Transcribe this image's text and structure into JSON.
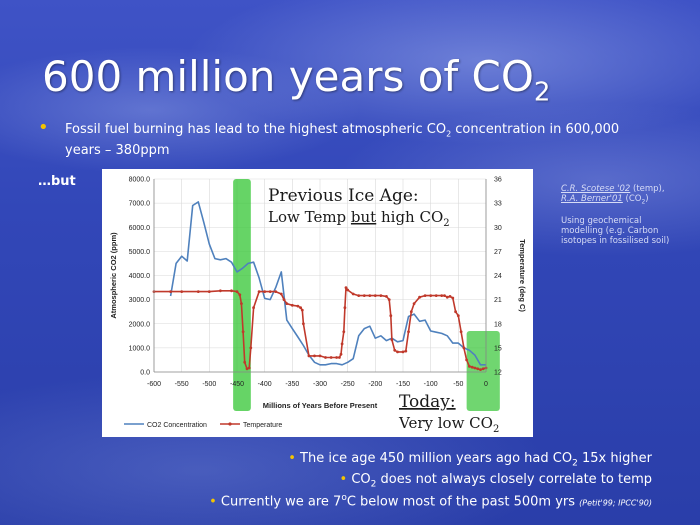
{
  "slide": {
    "title_main": "600 million years of CO",
    "title_sub": "2",
    "bullet": {
      "part1": "Fossil fuel burning has lead to the highest atmospheric CO",
      "sub": "2",
      "part2": " concentration in 600,000 years – 380ppm"
    },
    "but": "…but",
    "source": {
      "author1": "C.R. Scotese '02",
      "label1": " (temp),",
      "author2": "R.A. Berner'01",
      "label2": " (CO",
      "label2_sub": "2",
      "label2_end": ")",
      "method": "Using geochemical modelling (e.g. Carbon isotopes in fossilised soil)"
    },
    "bottom_bullets": [
      {
        "before": "The ice age 450 million years ago had CO",
        "sub": "2",
        "after": " 15x higher"
      },
      {
        "before": "CO",
        "sub": "2",
        "after": " does not always closely correlate to temp"
      },
      {
        "before": "Currently we are 7",
        "sup": "o",
        "after": "C below most of the past 500m yrs ",
        "cite": "(Petit'99; IPCC'90)"
      }
    ],
    "colors": {
      "bullet": "#f4c400",
      "highlight": "#33c533"
    }
  },
  "chart_data": {
    "type": "line",
    "xlabel": "Millions of Years Before Present",
    "ylabel": "Atmospheric CO2 (ppm)",
    "y2label": "Temperature (deg C)",
    "xlim": [
      -600,
      0
    ],
    "ylim": [
      0,
      8000
    ],
    "y2lim": [
      12,
      36
    ],
    "x_ticks": [
      -600,
      -550,
      -500,
      -450,
      -400,
      -350,
      -300,
      -250,
      -200,
      -150,
      -100,
      -50,
      0
    ],
    "y_ticks": [
      "0.0",
      "1000.0",
      "2000.0",
      "3000.0",
      "4000.0",
      "5000.0",
      "6000.0",
      "7000.0",
      "8000.0"
    ],
    "y2_ticks": [
      "12",
      "15",
      "18",
      "21",
      "24",
      "27",
      "30",
      "33",
      "36"
    ],
    "grid": true,
    "legend": "bottom-left",
    "series": [
      {
        "name": "CO2 Concentration",
        "axis": "left",
        "color": "#4f81bd",
        "x": [
          -570,
          -560,
          -550,
          -540,
          -530,
          -520,
          -510,
          -500,
          -490,
          -480,
          -470,
          -460,
          -450,
          -440,
          -430,
          -420,
          -410,
          -400,
          -390,
          -380,
          -370,
          -360,
          -350,
          -340,
          -330,
          -320,
          -310,
          -300,
          -290,
          -280,
          -270,
          -260,
          -250,
          -240,
          -230,
          -220,
          -210,
          -200,
          -190,
          -180,
          -170,
          -160,
          -150,
          -140,
          -130,
          -120,
          -110,
          -100,
          -90,
          -80,
          -70,
          -60,
          -50,
          -40,
          -30,
          -20,
          -10,
          0
        ],
        "values": [
          3150,
          4500,
          4800,
          4600,
          6900,
          7050,
          6200,
          5300,
          4700,
          4650,
          4700,
          4550,
          4150,
          4300,
          4500,
          4550,
          3900,
          3050,
          3000,
          3500,
          4150,
          2150,
          1800,
          1450,
          1100,
          700,
          400,
          300,
          300,
          350,
          350,
          300,
          400,
          550,
          1500,
          1800,
          1900,
          1400,
          1500,
          1300,
          1400,
          1250,
          1300,
          2300,
          2400,
          2100,
          2150,
          1700,
          1650,
          1600,
          1500,
          1200,
          1200,
          1000,
          900,
          700,
          300,
          300
        ]
      },
      {
        "name": "Temperature",
        "axis": "right",
        "color": "#c0392b",
        "x": [
          -600,
          -570,
          -550,
          -520,
          -500,
          -480,
          -460,
          -450,
          -445,
          -442,
          -439,
          -436,
          -432,
          -428,
          -425,
          -420,
          -410,
          -400,
          -390,
          -380,
          -370,
          -365,
          -360,
          -350,
          -340,
          -335,
          -332,
          -330,
          -320,
          -310,
          -300,
          -290,
          -280,
          -270,
          -265,
          -262,
          -260,
          -257,
          -255,
          -253,
          -250,
          -240,
          -230,
          -220,
          -210,
          -200,
          -190,
          -180,
          -175,
          -172,
          -170,
          -165,
          -160,
          -150,
          -145,
          -140,
          -135,
          -130,
          -120,
          -110,
          -100,
          -90,
          -80,
          -75,
          -70,
          -65,
          -60,
          -55,
          -50,
          -45,
          -40,
          -35,
          -30,
          -25,
          -20,
          -15,
          -10,
          -5,
          0
        ],
        "values": [
          22,
          22,
          22,
          22,
          22,
          22.1,
          22.1,
          22,
          21.6,
          20.5,
          17,
          13.2,
          12.4,
          12.5,
          15,
          20,
          22,
          22,
          22,
          22,
          21.7,
          21,
          20.5,
          20.3,
          20.2,
          20,
          19.7,
          18,
          14,
          14,
          14,
          13.8,
          13.8,
          13.8,
          13.8,
          14.2,
          15.5,
          17,
          20,
          22.5,
          22.2,
          21.7,
          21.5,
          21.5,
          21.5,
          21.5,
          21.5,
          21.4,
          21,
          19,
          16,
          14.7,
          14.5,
          14.5,
          14.6,
          17,
          19.5,
          20.5,
          21.3,
          21.5,
          21.5,
          21.5,
          21.5,
          21.5,
          21.3,
          21.4,
          21.2,
          19.5,
          19,
          17,
          15,
          13.5,
          12.7,
          12.6,
          12.5,
          12.4,
          12.3,
          12.4,
          12.5
        ]
      }
    ],
    "annotations": [
      {
        "text": "Previous Ice Age:",
        "line2_before": "Low Temp ",
        "line2_underlined": "but",
        "line2_after": " high CO",
        "line2_sub": "2",
        "x_range": [
          -457,
          -425
        ]
      },
      {
        "text": "Today:",
        "line2_before": "Very low CO",
        "line2_sub": "2",
        "x_range": [
          -35,
          25
        ]
      }
    ]
  }
}
